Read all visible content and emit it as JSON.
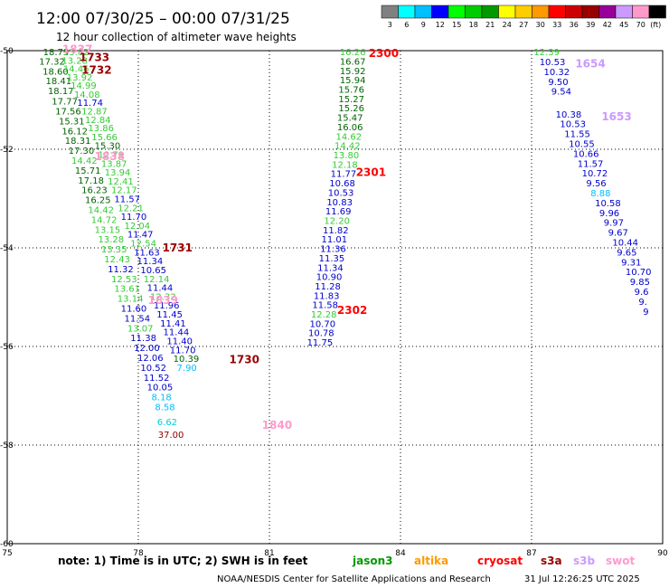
{
  "chart_data": {
    "type": "scatter",
    "title": "12:00 07/30/25 – 00:00 07/31/25",
    "subtitle": "12 hour collection of altimeter wave heights",
    "x_ticks": [
      75,
      78,
      81,
      84,
      87,
      90
    ],
    "y_ticks": [
      -50,
      -52,
      -54,
      -56,
      -58,
      -60
    ],
    "xlim": [
      75,
      90
    ],
    "ylim": [
      -60,
      -50
    ],
    "grid": true,
    "colorbar": {
      "labels": [
        "3",
        "6",
        "9",
        "12",
        "15",
        "18",
        "21",
        "24",
        "27",
        "30",
        "33",
        "36",
        "39",
        "42",
        "45",
        "70",
        "(ft)"
      ],
      "colors": [
        "#808080",
        "#00ffff",
        "#00bfff",
        "#0000ff",
        "#00ff00",
        "#00cc00",
        "#009900",
        "#ffff00",
        "#ffcc00",
        "#ff9900",
        "#ff0000",
        "#cc0000",
        "#990000",
        "#990099",
        "#cc99ff",
        "#ff99cc",
        "#000000"
      ]
    },
    "series": [
      {
        "name": "cryosat",
        "color": "#00008b",
        "points": []
      }
    ],
    "labels": [
      {
        "x": 75.82,
        "y": -50.02,
        "v": "18.75",
        "c": "#006400"
      },
      {
        "x": 75.73,
        "y": -50.21,
        "v": "17.32",
        "c": "#006400"
      },
      {
        "x": 75.81,
        "y": -50.41,
        "v": "18.60",
        "c": "#006400"
      },
      {
        "x": 75.88,
        "y": -50.61,
        "v": "18.41",
        "c": "#006400"
      },
      {
        "x": 75.93,
        "y": -50.81,
        "v": "18.17",
        "c": "#006400"
      },
      {
        "x": 76.02,
        "y": -51.02,
        "v": "17.77",
        "c": "#006400"
      },
      {
        "x": 76.1,
        "y": -51.22,
        "v": "17.56",
        "c": "#006400"
      },
      {
        "x": 76.18,
        "y": -51.42,
        "v": "15.31",
        "c": "#006400"
      },
      {
        "x": 76.25,
        "y": -51.62,
        "v": "16.12",
        "c": "#006400"
      },
      {
        "x": 76.32,
        "y": -51.82,
        "v": "18.31",
        "c": "#006400"
      },
      {
        "x": 76.4,
        "y": -52.02,
        "v": "17.30",
        "c": "#006400"
      },
      {
        "x": 76.47,
        "y": -52.22,
        "v": "14.42",
        "c": "#33cc33"
      },
      {
        "x": 76.55,
        "y": -52.42,
        "v": "15.71",
        "c": "#006400"
      },
      {
        "x": 76.62,
        "y": -52.62,
        "v": "17.18",
        "c": "#006400"
      },
      {
        "x": 76.7,
        "y": -52.82,
        "v": "16.23",
        "c": "#006400"
      },
      {
        "x": 76.78,
        "y": -53.02,
        "v": "16.25",
        "c": "#006400"
      },
      {
        "x": 76.85,
        "y": -53.22,
        "v": "14.42",
        "c": "#33cc33"
      },
      {
        "x": 76.92,
        "y": -53.42,
        "v": "14.72",
        "c": "#33cc33"
      },
      {
        "x": 77.0,
        "y": -53.62,
        "v": "13.15",
        "c": "#33cc33"
      },
      {
        "x": 77.08,
        "y": -53.82,
        "v": "13.28",
        "c": "#33cc33"
      },
      {
        "x": 77.15,
        "y": -54.02,
        "v": "13.35",
        "c": "#33cc33"
      },
      {
        "x": 77.22,
        "y": -54.22,
        "v": "12.43",
        "c": "#33cc33"
      },
      {
        "x": 77.3,
        "y": -54.42,
        "v": "11.32",
        "c": "#0000cd"
      },
      {
        "x": 77.38,
        "y": -54.62,
        "v": "12.53",
        "c": "#33cc33"
      },
      {
        "x": 77.45,
        "y": -54.82,
        "v": "13.61",
        "c": "#33cc33"
      },
      {
        "x": 77.52,
        "y": -55.02,
        "v": "13.14",
        "c": "#33cc33"
      },
      {
        "x": 77.6,
        "y": -55.22,
        "v": "11.60",
        "c": "#0000cd"
      },
      {
        "x": 77.68,
        "y": -55.42,
        "v": "11.54",
        "c": "#0000cd"
      },
      {
        "x": 77.75,
        "y": -55.62,
        "v": "13.07",
        "c": "#33cc33"
      },
      {
        "x": 77.82,
        "y": -55.82,
        "v": "11.38",
        "c": "#0000cd"
      },
      {
        "x": 77.9,
        "y": -56.02,
        "v": "12.00",
        "c": "#0000cd"
      },
      {
        "x": 77.98,
        "y": -56.22,
        "v": "12.06",
        "c": "#0000cd"
      },
      {
        "x": 78.05,
        "y": -56.42,
        "v": "10.52",
        "c": "#0000cd"
      },
      {
        "x": 78.12,
        "y": -56.62,
        "v": "11.52",
        "c": "#0000cd"
      },
      {
        "x": 78.2,
        "y": -56.82,
        "v": "10.05",
        "c": "#0000cd"
      },
      {
        "x": 78.3,
        "y": -57.02,
        "v": "8.18",
        "c": "#00bfff"
      },
      {
        "x": 78.38,
        "y": -57.22,
        "v": "8.58",
        "c": "#00bfff"
      },
      {
        "x": 78.43,
        "y": -57.52,
        "v": "6.62",
        "c": "#00ced1"
      },
      {
        "x": 78.45,
        "y": -57.78,
        "v": "37.00",
        "c": "#8b0000"
      },
      {
        "x": 76.28,
        "y": -50.02,
        "v": "13.02",
        "c": "#33cc33"
      },
      {
        "x": 76.25,
        "y": -50.19,
        "v": "13.28",
        "c": "#33cc33"
      },
      {
        "x": 76.28,
        "y": -50.36,
        "v": "14.46",
        "c": "#33cc33"
      },
      {
        "x": 76.36,
        "y": -50.53,
        "v": "13.92",
        "c": "#33cc33"
      },
      {
        "x": 76.45,
        "y": -50.7,
        "v": "14.99",
        "c": "#33cc33"
      },
      {
        "x": 76.53,
        "y": -50.88,
        "v": "14.08",
        "c": "#33cc33"
      },
      {
        "x": 76.6,
        "y": -51.05,
        "v": "11.74",
        "c": "#0000cd"
      },
      {
        "x": 76.7,
        "y": -51.22,
        "v": "12.87",
        "c": "#33cc33"
      },
      {
        "x": 76.78,
        "y": -51.39,
        "v": "12.84",
        "c": "#33cc33"
      },
      {
        "x": 76.85,
        "y": -51.56,
        "v": "13.86",
        "c": "#33cc33"
      },
      {
        "x": 76.93,
        "y": -51.74,
        "v": "15.66",
        "c": "#33cc33"
      },
      {
        "x": 77.0,
        "y": -51.92,
        "v": "15.30",
        "c": "#006400"
      },
      {
        "x": 77.08,
        "y": -52.1,
        "v": "12.73",
        "c": "#33cc33"
      },
      {
        "x": 77.15,
        "y": -52.28,
        "v": "13.87",
        "c": "#33cc33"
      },
      {
        "x": 77.23,
        "y": -52.46,
        "v": "13.94",
        "c": "#33cc33"
      },
      {
        "x": 77.3,
        "y": -52.64,
        "v": "12.41",
        "c": "#33cc33"
      },
      {
        "x": 77.38,
        "y": -52.82,
        "v": "12.17",
        "c": "#33cc33"
      },
      {
        "x": 77.45,
        "y": -53.0,
        "v": "11.57",
        "c": "#0000cd"
      },
      {
        "x": 77.53,
        "y": -53.18,
        "v": "12.21",
        "c": "#33cc33"
      },
      {
        "x": 77.6,
        "y": -53.36,
        "v": "11.70",
        "c": "#0000cd"
      },
      {
        "x": 77.68,
        "y": -53.54,
        "v": "12.04",
        "c": "#33cc33"
      },
      {
        "x": 77.75,
        "y": -53.72,
        "v": "11.47",
        "c": "#0000cd"
      },
      {
        "x": 77.82,
        "y": -53.9,
        "v": "12.54",
        "c": "#33cc33"
      },
      {
        "x": 77.9,
        "y": -54.08,
        "v": "11.63",
        "c": "#0000cd"
      },
      {
        "x": 77.97,
        "y": -54.26,
        "v": "11.34",
        "c": "#0000cd"
      },
      {
        "x": 78.05,
        "y": -54.44,
        "v": "10.65",
        "c": "#0000cd"
      },
      {
        "x": 78.12,
        "y": -54.62,
        "v": "12.14",
        "c": "#33cc33"
      },
      {
        "x": 78.2,
        "y": -54.8,
        "v": "11.44",
        "c": "#0000cd"
      },
      {
        "x": 78.27,
        "y": -54.98,
        "v": "12.32",
        "c": "#33cc33"
      },
      {
        "x": 78.35,
        "y": -55.16,
        "v": "11.96",
        "c": "#0000cd"
      },
      {
        "x": 78.42,
        "y": -55.34,
        "v": "11.45",
        "c": "#0000cd"
      },
      {
        "x": 78.5,
        "y": -55.52,
        "v": "11.41",
        "c": "#0000cd"
      },
      {
        "x": 78.57,
        "y": -55.7,
        "v": "11.44",
        "c": "#0000cd"
      },
      {
        "x": 78.65,
        "y": -55.88,
        "v": "11.40",
        "c": "#0000cd"
      },
      {
        "x": 78.72,
        "y": -56.06,
        "v": "11.70",
        "c": "#0000cd"
      },
      {
        "x": 78.8,
        "y": -56.24,
        "v": "10.39",
        "c": "#006400"
      },
      {
        "x": 78.88,
        "y": -56.42,
        "v": "7.90",
        "c": "#00bfff"
      },
      {
        "x": 82.61,
        "y": -50.02,
        "v": "16.26",
        "c": "#33cc33"
      },
      {
        "x": 82.61,
        "y": -50.21,
        "v": "16.67",
        "c": "#006400"
      },
      {
        "x": 82.61,
        "y": -50.4,
        "v": "15.92",
        "c": "#006400"
      },
      {
        "x": 82.61,
        "y": -50.59,
        "v": "15.94",
        "c": "#006400"
      },
      {
        "x": 82.58,
        "y": -50.78,
        "v": "15.76",
        "c": "#006400"
      },
      {
        "x": 82.58,
        "y": -50.97,
        "v": "15.27",
        "c": "#006400"
      },
      {
        "x": 82.58,
        "y": -51.16,
        "v": "15.26",
        "c": "#006400"
      },
      {
        "x": 82.55,
        "y": -51.35,
        "v": "15.47",
        "c": "#006400"
      },
      {
        "x": 82.55,
        "y": -51.54,
        "v": "16.06",
        "c": "#006400"
      },
      {
        "x": 82.52,
        "y": -51.73,
        "v": "14.62",
        "c": "#33cc33"
      },
      {
        "x": 82.49,
        "y": -51.92,
        "v": "14.42",
        "c": "#33cc33"
      },
      {
        "x": 82.46,
        "y": -52.11,
        "v": "13.80",
        "c": "#33cc33"
      },
      {
        "x": 82.43,
        "y": -52.3,
        "v": "12.18",
        "c": "#33cc33"
      },
      {
        "x": 82.4,
        "y": -52.49,
        "v": "11.77",
        "c": "#0000cd"
      },
      {
        "x": 82.37,
        "y": -52.68,
        "v": "10.68",
        "c": "#0000cd"
      },
      {
        "x": 82.34,
        "y": -52.87,
        "v": "10.53",
        "c": "#0000cd"
      },
      {
        "x": 82.31,
        "y": -53.06,
        "v": "10.83",
        "c": "#0000cd"
      },
      {
        "x": 82.28,
        "y": -53.25,
        "v": "11.69",
        "c": "#0000cd"
      },
      {
        "x": 82.25,
        "y": -53.44,
        "v": "12.20",
        "c": "#33cc33"
      },
      {
        "x": 82.22,
        "y": -53.63,
        "v": "11.82",
        "c": "#0000cd"
      },
      {
        "x": 82.19,
        "y": -53.82,
        "v": "11.01",
        "c": "#0000cd"
      },
      {
        "x": 82.16,
        "y": -54.01,
        "v": "11.36",
        "c": "#0000cd"
      },
      {
        "x": 82.13,
        "y": -54.2,
        "v": "11.35",
        "c": "#0000cd"
      },
      {
        "x": 82.1,
        "y": -54.39,
        "v": "11.34",
        "c": "#0000cd"
      },
      {
        "x": 82.07,
        "y": -54.58,
        "v": "10.90",
        "c": "#0000cd"
      },
      {
        "x": 82.04,
        "y": -54.77,
        "v": "11.28",
        "c": "#0000cd"
      },
      {
        "x": 82.01,
        "y": -54.96,
        "v": "11.83",
        "c": "#0000cd"
      },
      {
        "x": 81.98,
        "y": -55.15,
        "v": "11.58",
        "c": "#0000cd"
      },
      {
        "x": 81.95,
        "y": -55.34,
        "v": "12.28",
        "c": "#33cc33"
      },
      {
        "x": 81.92,
        "y": -55.53,
        "v": "10.70",
        "c": "#0000cd"
      },
      {
        "x": 81.89,
        "y": -55.72,
        "v": "10.78",
        "c": "#0000cd"
      },
      {
        "x": 81.86,
        "y": -55.91,
        "v": "11.75",
        "c": "#0000cd"
      },
      {
        "x": 87.05,
        "y": -50.02,
        "v": "12.39",
        "c": "#33cc33"
      },
      {
        "x": 87.18,
        "y": -50.22,
        "v": "10.53",
        "c": "#0000cd"
      },
      {
        "x": 87.28,
        "y": -50.42,
        "v": "10.32",
        "c": "#0000cd"
      },
      {
        "x": 87.38,
        "y": -50.62,
        "v": "9.50",
        "c": "#0000cd"
      },
      {
        "x": 87.45,
        "y": -50.82,
        "v": "9.54",
        "c": "#0000cd"
      },
      {
        "x": 87.55,
        "y": -51.28,
        "v": "10.38",
        "c": "#0000cd"
      },
      {
        "x": 87.65,
        "y": -51.48,
        "v": "10.53",
        "c": "#0000cd"
      },
      {
        "x": 87.75,
        "y": -51.68,
        "v": "11.55",
        "c": "#0000cd"
      },
      {
        "x": 87.85,
        "y": -51.88,
        "v": "10.55",
        "c": "#0000cd"
      },
      {
        "x": 87.95,
        "y": -52.08,
        "v": "10.66",
        "c": "#0000cd"
      },
      {
        "x": 88.05,
        "y": -52.28,
        "v": "11.57",
        "c": "#0000cd"
      },
      {
        "x": 88.15,
        "y": -52.48,
        "v": "10.72",
        "c": "#0000cd"
      },
      {
        "x": 88.25,
        "y": -52.68,
        "v": "9.56",
        "c": "#0000cd"
      },
      {
        "x": 88.35,
        "y": -52.88,
        "v": "8.88",
        "c": "#00bfff"
      },
      {
        "x": 88.45,
        "y": -53.08,
        "v": "10.58",
        "c": "#0000cd"
      },
      {
        "x": 88.55,
        "y": -53.28,
        "v": "9.96",
        "c": "#0000cd"
      },
      {
        "x": 88.65,
        "y": -53.48,
        "v": "9.97",
        "c": "#0000cd"
      },
      {
        "x": 88.75,
        "y": -53.68,
        "v": "9.67",
        "c": "#0000cd"
      },
      {
        "x": 88.85,
        "y": -53.88,
        "v": "10.44",
        "c": "#0000cd"
      },
      {
        "x": 88.95,
        "y": -54.08,
        "v": "9.65",
        "c": "#0000cd"
      },
      {
        "x": 89.05,
        "y": -54.28,
        "v": "9.31",
        "c": "#0000cd"
      },
      {
        "x": 89.15,
        "y": -54.48,
        "v": "10.70",
        "c": "#0000cd"
      },
      {
        "x": 89.25,
        "y": -54.68,
        "v": "9.85",
        "c": "#0000cd"
      },
      {
        "x": 89.35,
        "y": -54.88,
        "v": "9.6",
        "c": "#0000cd"
      },
      {
        "x": 89.45,
        "y": -55.08,
        "v": "9.",
        "c": "#0000cd"
      },
      {
        "x": 89.55,
        "y": -55.28,
        "v": "9",
        "c": "#0000cd"
      }
    ],
    "pass_labels": [
      {
        "x": 76.26,
        "y": -49.95,
        "v": "1837",
        "c": "#ff99cc"
      },
      {
        "x": 76.65,
        "y": -50.12,
        "v": "1733",
        "c": "#990000"
      },
      {
        "x": 76.7,
        "y": -50.38,
        "v": "1732",
        "c": "#990000"
      },
      {
        "x": 77.0,
        "y": -52.13,
        "v": "1838",
        "c": "#ff99cc"
      },
      {
        "x": 78.55,
        "y": -53.98,
        "v": "1731",
        "c": "#990000"
      },
      {
        "x": 78.22,
        "y": -55.05,
        "v": "1839",
        "c": "#ff99cc"
      },
      {
        "x": 80.08,
        "y": -56.25,
        "v": "1730",
        "c": "#990000"
      },
      {
        "x": 80.83,
        "y": -57.58,
        "v": "1840",
        "c": "#ff99cc"
      },
      {
        "x": 83.27,
        "y": -50.04,
        "v": "2300",
        "c": "#ff0000"
      },
      {
        "x": 82.98,
        "y": -52.45,
        "v": "2301",
        "c": "#ff0000"
      },
      {
        "x": 82.55,
        "y": -55.25,
        "v": "2302",
        "c": "#ff0000"
      },
      {
        "x": 88.0,
        "y": -50.25,
        "v": "1654",
        "c": "#cc99ff"
      },
      {
        "x": 88.6,
        "y": -51.32,
        "v": "1653",
        "c": "#cc99ff"
      }
    ]
  },
  "footer": {
    "note": "note:  1) Time is in UTC;  2) SWH is in feet",
    "satellites": [
      {
        "name": "jason3",
        "color": "#009900"
      },
      {
        "name": "altika",
        "color": "#ff9900"
      },
      {
        "name": "cryosat",
        "color": "#ff0000"
      },
      {
        "name": "s3a",
        "color": "#990000"
      },
      {
        "name": "s3b",
        "color": "#cc99ff"
      },
      {
        "name": "swot",
        "color": "#ff99cc"
      }
    ],
    "credit": "NOAA/NESDIS Center for Satellite Applications and Research",
    "timestamp": "31 Jul 12:26:25 UTC 2025"
  }
}
